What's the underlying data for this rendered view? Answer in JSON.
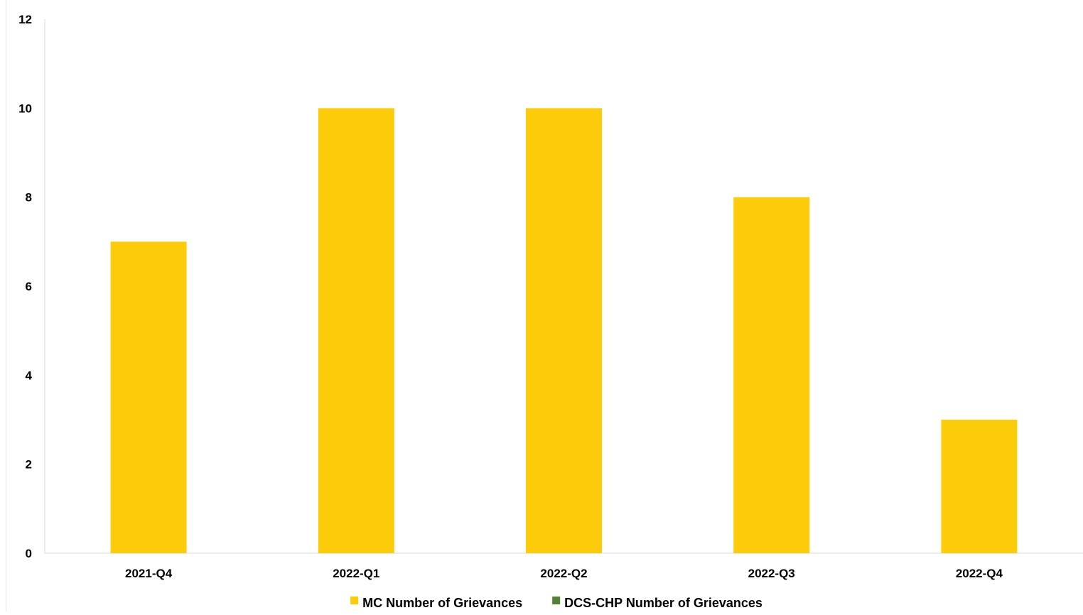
{
  "chart_data": {
    "type": "bar",
    "categories": [
      "2021-Q4",
      "2022-Q1",
      "2022-Q2",
      "2022-Q3",
      "2022-Q4"
    ],
    "series": [
      {
        "name": "MC Number of Grievances",
        "values": [
          7,
          10,
          10,
          8,
          3
        ],
        "color": "#FCCC0A"
      },
      {
        "name": "DCS-CHP Number of Grievances",
        "values": [
          0,
          0,
          0,
          0,
          0
        ],
        "color": "#538135"
      }
    ],
    "title": "",
    "xlabel": "",
    "ylabel": "",
    "ylim": [
      0,
      12
    ],
    "yticks": [
      0,
      2,
      4,
      6,
      8,
      10,
      12
    ],
    "grid": false,
    "legend_position": "bottom"
  }
}
